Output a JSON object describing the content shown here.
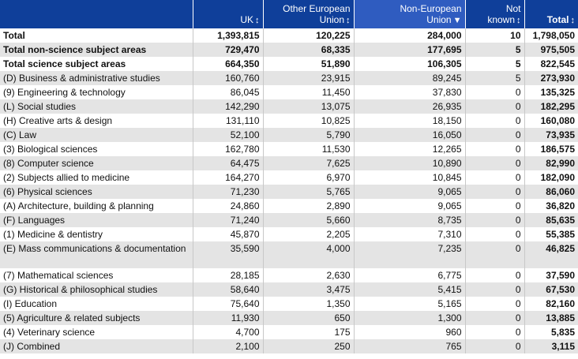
{
  "headers": {
    "uk": "UK",
    "other_eu_line1": "Other European",
    "other_eu_line2": "Union",
    "non_eu_line1": "Non-European",
    "non_eu_line2": "Union",
    "not_known_line1": "Not",
    "not_known_line2": "known",
    "total": "Total"
  },
  "icons": {
    "sort": "sort-updown-icon",
    "sort_active": "sort-desc-icon"
  },
  "colors": {
    "header_bg": "#0f3f9a",
    "header_active_bg": "#2f5cc0",
    "stripe": "#e4e4e4"
  },
  "rows": [
    {
      "label": "Total",
      "uk": "1,393,815",
      "other_eu": "120,225",
      "non_eu": "284,000",
      "not_known": "10",
      "total": "1,798,050"
    },
    {
      "label": "Total non-science subject areas",
      "uk": "729,470",
      "other_eu": "68,335",
      "non_eu": "177,695",
      "not_known": "5",
      "total": "975,505"
    },
    {
      "label": "Total science subject areas",
      "uk": "664,350",
      "other_eu": "51,890",
      "non_eu": "106,305",
      "not_known": "5",
      "total": "822,545"
    },
    {
      "label": "(D) Business & administrative studies",
      "uk": "160,760",
      "other_eu": "23,915",
      "non_eu": "89,245",
      "not_known": "5",
      "total": "273,930"
    },
    {
      "label": "(9) Engineering & technology",
      "uk": "86,045",
      "other_eu": "11,450",
      "non_eu": "37,830",
      "not_known": "0",
      "total": "135,325"
    },
    {
      "label": "(L) Social studies",
      "uk": "142,290",
      "other_eu": "13,075",
      "non_eu": "26,935",
      "not_known": "0",
      "total": "182,295"
    },
    {
      "label": "(H) Creative arts & design",
      "uk": "131,110",
      "other_eu": "10,825",
      "non_eu": "18,150",
      "not_known": "0",
      "total": "160,080"
    },
    {
      "label": "(C) Law",
      "uk": "52,100",
      "other_eu": "5,790",
      "non_eu": "16,050",
      "not_known": "0",
      "total": "73,935"
    },
    {
      "label": "(3) Biological sciences",
      "uk": "162,780",
      "other_eu": "11,530",
      "non_eu": "12,265",
      "not_known": "0",
      "total": "186,575"
    },
    {
      "label": "(8) Computer science",
      "uk": "64,475",
      "other_eu": "7,625",
      "non_eu": "10,890",
      "not_known": "0",
      "total": "82,990"
    },
    {
      "label": "(2) Subjects allied to medicine",
      "uk": "164,270",
      "other_eu": "6,970",
      "non_eu": "10,845",
      "not_known": "0",
      "total": "182,090"
    },
    {
      "label": "(6) Physical sciences",
      "uk": "71,230",
      "other_eu": "5,765",
      "non_eu": "9,065",
      "not_known": "0",
      "total": "86,060"
    },
    {
      "label": "(A) Architecture, building & planning",
      "uk": "24,860",
      "other_eu": "2,890",
      "non_eu": "9,065",
      "not_known": "0",
      "total": "36,820"
    },
    {
      "label": "(F) Languages",
      "uk": "71,240",
      "other_eu": "5,660",
      "non_eu": "8,735",
      "not_known": "0",
      "total": "85,635"
    },
    {
      "label": "(1) Medicine & dentistry",
      "uk": "45,870",
      "other_eu": "2,205",
      "non_eu": "7,310",
      "not_known": "0",
      "total": "55,385"
    },
    {
      "label": "(E) Mass communications & documentation",
      "uk": "35,590",
      "other_eu": "4,000",
      "non_eu": "7,235",
      "not_known": "0",
      "total": "46,825",
      "wrap": true
    },
    {
      "label": "(7) Mathematical sciences",
      "uk": "28,185",
      "other_eu": "2,630",
      "non_eu": "6,775",
      "not_known": "0",
      "total": "37,590"
    },
    {
      "label": "(G) Historical & philosophical studies",
      "uk": "58,640",
      "other_eu": "3,475",
      "non_eu": "5,415",
      "not_known": "0",
      "total": "67,530"
    },
    {
      "label": "(I) Education",
      "uk": "75,640",
      "other_eu": "1,350",
      "non_eu": "5,165",
      "not_known": "0",
      "total": "82,160"
    },
    {
      "label": "(5) Agriculture & related subjects",
      "uk": "11,930",
      "other_eu": "650",
      "non_eu": "1,300",
      "not_known": "0",
      "total": "13,885"
    },
    {
      "label": "(4) Veterinary science",
      "uk": "4,700",
      "other_eu": "175",
      "non_eu": "960",
      "not_known": "0",
      "total": "5,835"
    },
    {
      "label": "(J) Combined",
      "uk": "2,100",
      "other_eu": "250",
      "non_eu": "765",
      "not_known": "0",
      "total": "3,115"
    }
  ]
}
